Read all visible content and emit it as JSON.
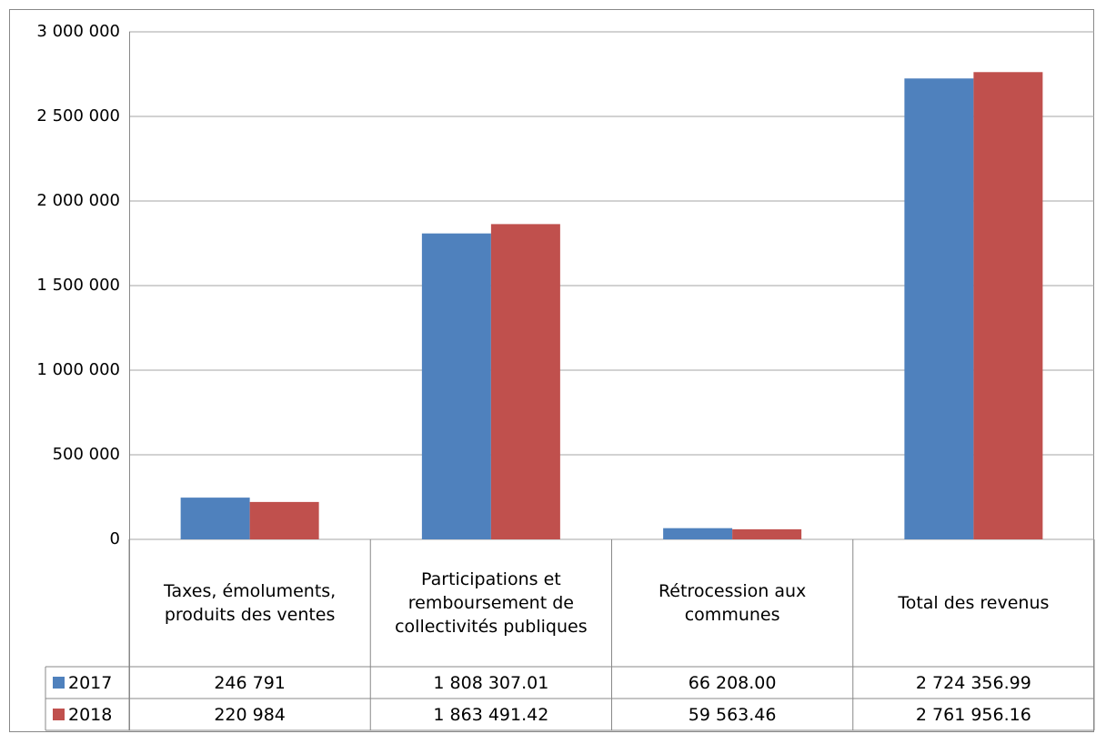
{
  "chart_data": {
    "type": "bar",
    "categories": [
      "Taxes, émoluments, produits des ventes",
      "Participations et remboursement de collectivités publiques",
      "Rétrocession aux communes",
      "Total des revenus"
    ],
    "series": [
      {
        "name": "2017",
        "color": "#4f81bd",
        "values": [
          246791,
          1808307.01,
          66208.0,
          2724356.99
        ],
        "value_labels": [
          "246 791",
          "1 808 307.01",
          "66 208.00",
          "2 724 356.99"
        ]
      },
      {
        "name": "2018",
        "color": "#c0504d",
        "values": [
          220984,
          1863491.42,
          59563.46,
          2761956.16
        ],
        "value_labels": [
          "220 984",
          "1 863 491.42",
          "59 563.46",
          "2 761 956.16"
        ]
      }
    ],
    "ylim": [
      0,
      3000000
    ],
    "yticks": [
      0,
      {
        "value": 500000,
        "label": "500 000"
      },
      {
        "value": 1000000,
        "label": "1 000 000"
      },
      {
        "value": 1500000,
        "label": "1 500 000"
      },
      {
        "value": 2000000,
        "label": "2 000 000"
      },
      {
        "value": 2500000,
        "label": "2 500 000"
      },
      {
        "value": 3000000,
        "label": "3 000 000"
      }
    ],
    "grid": true
  }
}
